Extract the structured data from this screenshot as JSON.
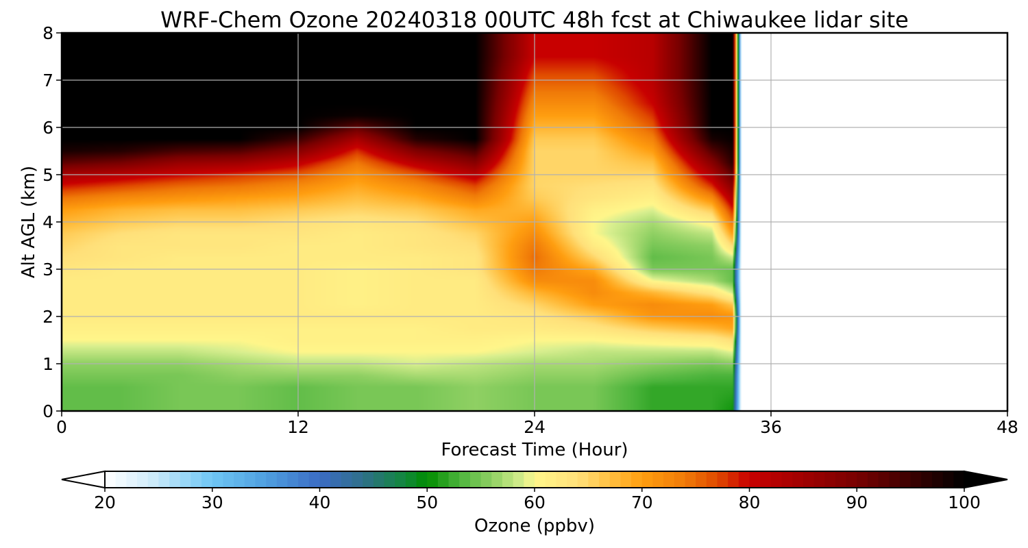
{
  "chart_data": {
    "type": "heatmap",
    "title": "WRF-Chem Ozone  20240318 00UTC 48h fcst at Chiwaukee lidar site",
    "xlabel": "Forecast Time (Hour)",
    "ylabel": "Alt AGL (km)",
    "xlim": [
      0,
      48
    ],
    "ylim": [
      0,
      8
    ],
    "x_ticks": [
      "0",
      "12",
      "24",
      "36",
      "48"
    ],
    "y_ticks": [
      "0",
      "1",
      "2",
      "3",
      "4",
      "5",
      "6",
      "7",
      "8"
    ],
    "grid": true,
    "colorbar": {
      "label": "Ozone  (ppbv)",
      "range": [
        20,
        100
      ],
      "ticks": [
        "20",
        "30",
        "40",
        "50",
        "60",
        "70",
        "80",
        "90",
        "100"
      ],
      "extend": "both",
      "orientation": "horizontal",
      "colors": [
        {
          "v": 20,
          "c": "#ffffff"
        },
        {
          "v": 24,
          "c": "#d4eefb"
        },
        {
          "v": 30,
          "c": "#6fc6f4"
        },
        {
          "v": 35,
          "c": "#4f9fe0"
        },
        {
          "v": 40,
          "c": "#3b6cc4"
        },
        {
          "v": 44,
          "c": "#2f6f8a"
        },
        {
          "v": 48,
          "c": "#11883a"
        },
        {
          "v": 50,
          "c": "#008c00"
        },
        {
          "v": 53,
          "c": "#4cb43c"
        },
        {
          "v": 56,
          "c": "#8fd063"
        },
        {
          "v": 59,
          "c": "#d9ef8f"
        },
        {
          "v": 60,
          "c": "#fff68a"
        },
        {
          "v": 64,
          "c": "#ffe07a"
        },
        {
          "v": 67,
          "c": "#ffc042"
        },
        {
          "v": 70,
          "c": "#ff9e10"
        },
        {
          "v": 74,
          "c": "#f07a08"
        },
        {
          "v": 77,
          "c": "#e04a00"
        },
        {
          "v": 80,
          "c": "#c80000"
        },
        {
          "v": 85,
          "c": "#a00000"
        },
        {
          "v": 90,
          "c": "#780000"
        },
        {
          "v": 95,
          "c": "#3c0000"
        },
        {
          "v": 100,
          "c": "#000000"
        }
      ]
    },
    "data_valid_until_hour": 34.5,
    "time_hours": [
      0,
      3,
      6,
      9,
      12,
      15,
      18,
      21,
      24,
      27,
      30,
      33,
      34.5
    ],
    "altitude_km": [
      0,
      0.25,
      0.5,
      0.75,
      1,
      1.25,
      1.5,
      1.75,
      2,
      2.25,
      2.5,
      2.75,
      3,
      3.25,
      3.5,
      3.75,
      4,
      4.25,
      4.5,
      4.75,
      5,
      5.25,
      5.5,
      5.75,
      6,
      6.25,
      6.5,
      6.75,
      7,
      7.25,
      7.5,
      7.75,
      8
    ],
    "ozone_ppbv_by_time": [
      [
        54,
        54,
        54,
        55,
        56,
        58,
        60,
        61,
        62,
        62,
        62,
        62,
        63,
        64,
        65,
        66,
        68,
        70,
        74,
        79,
        84,
        92,
        98,
        100,
        100,
        100,
        100,
        100,
        100,
        100,
        100,
        100,
        100
      ],
      [
        54,
        54,
        54,
        55,
        56,
        58,
        60,
        61,
        62,
        62,
        62,
        62,
        62,
        63,
        63,
        64,
        66,
        68,
        72,
        77,
        82,
        90,
        97,
        100,
        100,
        100,
        100,
        100,
        100,
        100,
        100,
        100,
        100
      ],
      [
        55,
        55,
        55,
        55,
        56,
        58,
        60,
        61,
        62,
        62,
        62,
        62,
        62,
        62,
        63,
        63,
        65,
        67,
        71,
        75,
        80,
        86,
        94,
        100,
        100,
        100,
        100,
        100,
        100,
        100,
        100,
        100,
        100
      ],
      [
        55,
        55,
        55,
        56,
        57,
        59,
        60,
        61,
        62,
        62,
        62,
        62,
        62,
        62,
        63,
        63,
        65,
        67,
        70,
        74,
        78,
        85,
        93,
        100,
        100,
        100,
        100,
        100,
        100,
        100,
        100,
        100,
        100
      ],
      [
        54,
        54,
        54,
        56,
        58,
        60,
        61,
        61,
        62,
        62,
        62,
        62,
        62,
        62,
        62,
        63,
        64,
        66,
        69,
        72,
        76,
        81,
        88,
        95,
        100,
        100,
        100,
        100,
        100,
        100,
        100,
        100,
        100
      ],
      [
        55,
        55,
        55,
        56,
        58,
        60,
        61,
        61,
        62,
        61,
        61,
        61,
        61,
        62,
        62,
        62,
        63,
        65,
        67,
        69,
        71,
        74,
        78,
        84,
        92,
        99,
        100,
        100,
        100,
        100,
        100,
        100,
        100
      ],
      [
        55,
        55,
        55,
        57,
        59,
        60,
        61,
        61,
        62,
        62,
        62,
        62,
        62,
        62,
        63,
        63,
        64,
        66,
        69,
        72,
        76,
        82,
        89,
        97,
        100,
        100,
        100,
        100,
        100,
        100,
        100,
        100,
        100
      ],
      [
        56,
        56,
        56,
        57,
        58,
        60,
        61,
        62,
        62,
        62,
        62,
        62,
        63,
        63,
        64,
        65,
        67,
        69,
        73,
        77,
        82,
        88,
        94,
        100,
        100,
        100,
        100,
        100,
        100,
        100,
        100,
        100,
        100
      ],
      [
        55,
        55,
        55,
        56,
        57,
        59,
        60,
        62,
        63,
        65,
        68,
        72,
        74,
        75,
        74,
        72,
        70,
        68,
        66,
        65,
        65,
        65,
        65,
        66,
        68,
        70,
        72,
        74,
        76,
        78,
        80,
        80,
        80
      ],
      [
        55,
        55,
        55,
        56,
        57,
        58,
        60,
        63,
        66,
        70,
        72,
        72,
        69,
        65,
        62,
        60,
        60,
        61,
        63,
        64,
        65,
        65,
        65,
        66,
        68,
        70,
        72,
        74,
        76,
        78,
        80,
        80,
        80
      ],
      [
        52,
        52,
        52,
        54,
        56,
        58,
        61,
        66,
        71,
        72,
        68,
        60,
        55,
        54,
        55,
        56,
        57,
        59,
        61,
        63,
        65,
        67,
        70,
        73,
        76,
        78,
        80,
        81,
        82,
        82,
        82,
        82,
        82
      ],
      [
        52,
        52,
        52,
        53,
        55,
        58,
        62,
        68,
        72,
        70,
        63,
        57,
        55,
        55,
        56,
        58,
        61,
        66,
        72,
        78,
        83,
        88,
        93,
        98,
        100,
        100,
        100,
        100,
        100,
        100,
        100,
        100,
        100
      ],
      [
        50,
        51,
        52,
        53,
        56,
        60,
        65,
        70,
        71,
        65,
        57,
        53,
        54,
        60,
        68,
        75,
        80,
        84,
        88,
        92,
        96,
        100,
        100,
        100,
        100,
        100,
        100,
        100,
        100,
        100,
        100,
        100,
        100
      ]
    ]
  }
}
